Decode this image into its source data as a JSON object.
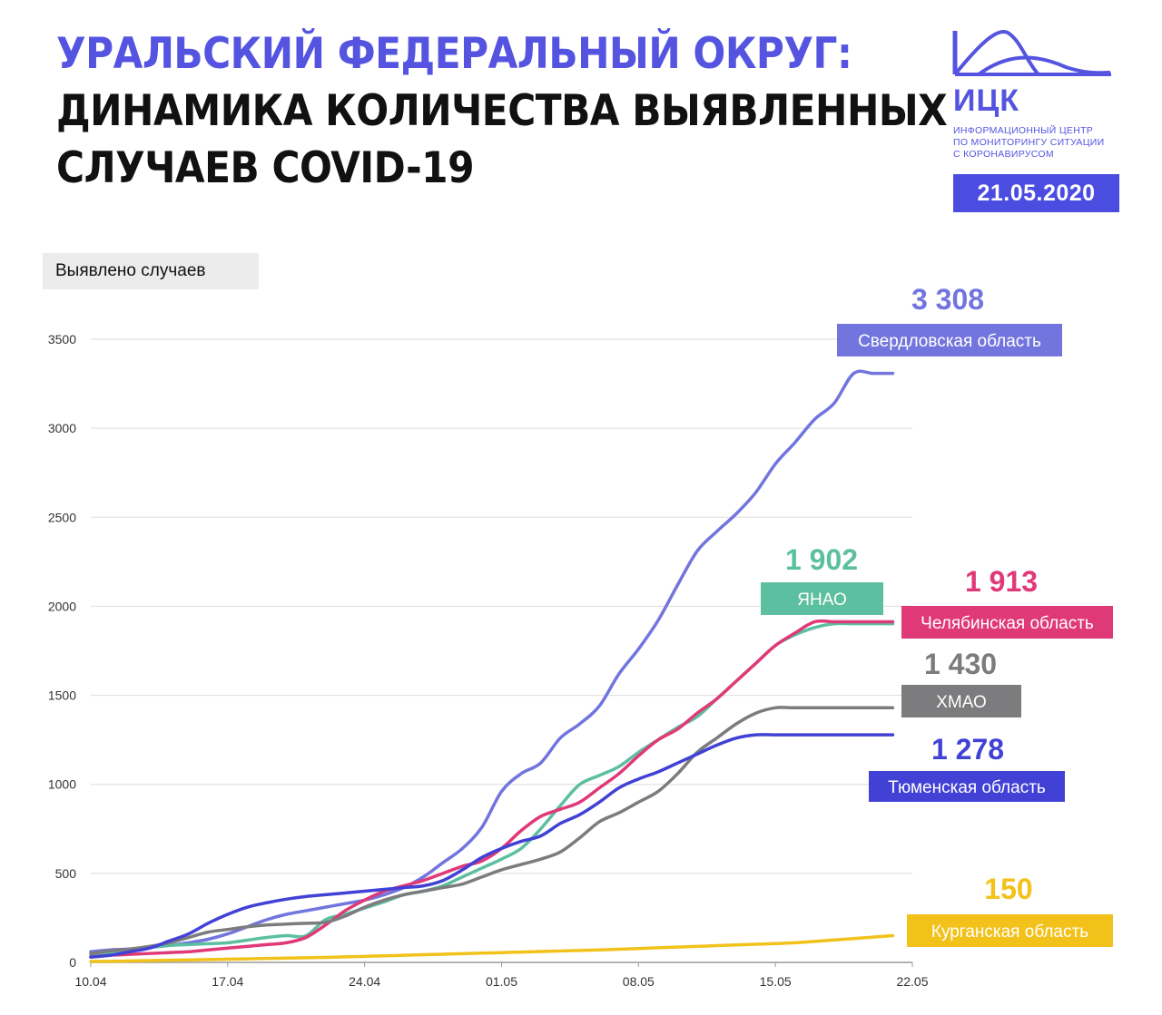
{
  "header": {
    "title_line1": "УРАЛЬСКИЙ ФЕДЕРАЛЬНЫЙ ОКРУГ:",
    "title_line2": "ДИНАМИКА КОЛИЧЕСТВА ВЫЯВЛЕННЫХ",
    "title_line3": "СЛУЧАЕВ COVID-19"
  },
  "logo": {
    "abbr": "ИЦК",
    "desc_line1": "ИНФОРМАЦИОННЫЙ ЦЕНТР",
    "desc_line2": "ПО МОНИТОРИНГУ СИТУАЦИИ",
    "desc_line3": "С КОРОНАВИРУСОМ",
    "color": "#5554e0"
  },
  "date": "21.05.2020",
  "chart_data": {
    "type": "line",
    "ylabel": "Выявлено случаев",
    "ylim": [
      0,
      3500
    ],
    "yticks": [
      0,
      500,
      1000,
      1500,
      2000,
      2500,
      3000,
      3500
    ],
    "x_range": [
      "10.04",
      "22.05"
    ],
    "xticks": [
      "10.04",
      "17.04",
      "24.04",
      "01.05",
      "08.05",
      "15.05",
      "22.05"
    ],
    "grid": true,
    "x": [
      "10.04",
      "11.04",
      "12.04",
      "13.04",
      "14.04",
      "15.04",
      "16.04",
      "17.04",
      "18.04",
      "19.04",
      "20.04",
      "21.04",
      "22.04",
      "23.04",
      "24.04",
      "25.04",
      "26.04",
      "27.04",
      "28.04",
      "29.04",
      "30.04",
      "01.05",
      "02.05",
      "03.05",
      "04.05",
      "05.05",
      "06.05",
      "07.05",
      "08.05",
      "09.05",
      "10.05",
      "11.05",
      "12.05",
      "13.05",
      "14.05",
      "15.05",
      "16.05",
      "17.05",
      "18.05",
      "19.05",
      "20.05",
      "21.05"
    ],
    "series": [
      {
        "name": "Свердловская область",
        "color": "#7175dd",
        "final_label": "3 308",
        "values": [
          60,
          70,
          75,
          85,
          95,
          110,
          130,
          160,
          200,
          240,
          270,
          290,
          310,
          330,
          350,
          380,
          420,
          480,
          560,
          640,
          760,
          960,
          1060,
          1120,
          1260,
          1340,
          1440,
          1620,
          1760,
          1920,
          2120,
          2310,
          2420,
          2520,
          2640,
          2800,
          2920,
          3050,
          3140,
          3308,
          3308,
          3308
        ]
      },
      {
        "name": "ЯНАО",
        "color": "#5cbf9f",
        "final_label": "1 902",
        "values": [
          40,
          55,
          70,
          85,
          95,
          100,
          105,
          110,
          125,
          140,
          150,
          150,
          240,
          270,
          305,
          340,
          380,
          400,
          430,
          480,
          530,
          580,
          640,
          750,
          880,
          1000,
          1050,
          1100,
          1180,
          1250,
          1320,
          1380,
          1480,
          1580,
          1680,
          1780,
          1840,
          1880,
          1902,
          1902,
          1902,
          1902
        ]
      },
      {
        "name": "Челябинская область",
        "color": "#e03977",
        "final_label": "1 913",
        "values": [
          30,
          40,
          45,
          50,
          55,
          60,
          70,
          80,
          90,
          100,
          110,
          140,
          210,
          290,
          350,
          400,
          430,
          460,
          500,
          540,
          570,
          640,
          740,
          820,
          860,
          900,
          980,
          1060,
          1160,
          1250,
          1310,
          1400,
          1480,
          1580,
          1680,
          1780,
          1850,
          1913,
          1913,
          1913,
          1913,
          1913
        ]
      },
      {
        "name": "ХМАО",
        "color": "#7c7c7e",
        "final_label": "1 430",
        "values": [
          50,
          65,
          75,
          90,
          110,
          140,
          170,
          185,
          200,
          210,
          215,
          220,
          225,
          260,
          310,
          350,
          380,
          400,
          420,
          440,
          480,
          520,
          550,
          580,
          620,
          700,
          790,
          840,
          900,
          960,
          1060,
          1180,
          1260,
          1340,
          1400,
          1430,
          1430,
          1430,
          1430,
          1430,
          1430,
          1430
        ]
      },
      {
        "name": "Тюменская область",
        "color": "#4141d6",
        "final_label": "1 278",
        "values": [
          30,
          40,
          60,
          80,
          120,
          160,
          220,
          270,
          310,
          335,
          355,
          370,
          380,
          390,
          400,
          410,
          420,
          430,
          460,
          520,
          590,
          640,
          680,
          710,
          780,
          830,
          900,
          980,
          1030,
          1070,
          1120,
          1170,
          1220,
          1260,
          1278,
          1278,
          1278,
          1278,
          1278,
          1278,
          1278,
          1278
        ]
      },
      {
        "name": "Курганская область",
        "color": "#f2c21b",
        "final_label": "150",
        "values": [
          5,
          6,
          8,
          10,
          12,
          14,
          16,
          18,
          20,
          22,
          24,
          26,
          28,
          31,
          34,
          37,
          40,
          43,
          46,
          49,
          52,
          55,
          58,
          61,
          64,
          67,
          70,
          74,
          78,
          82,
          86,
          90,
          94,
          98,
          102,
          106,
          110,
          118,
          126,
          134,
          142,
          150
        ]
      }
    ]
  }
}
